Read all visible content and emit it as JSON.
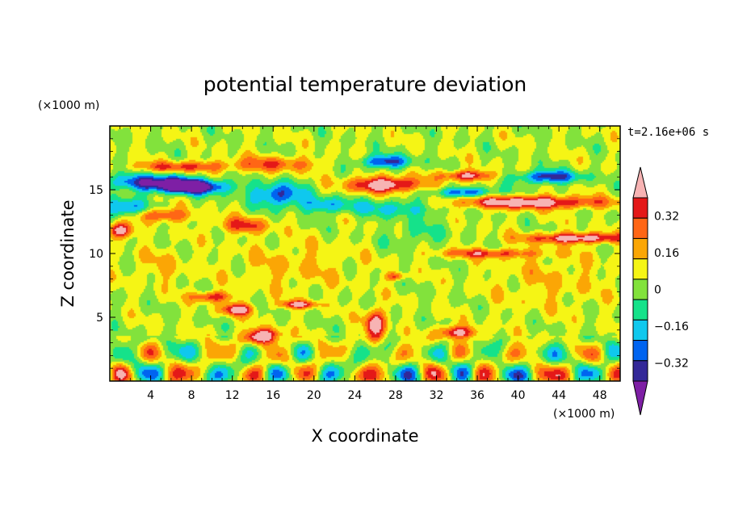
{
  "chart_data": {
    "type": "heatmap",
    "title": "potential temperature deviation",
    "xlabel": "X coordinate",
    "ylabel": "Z coordinate",
    "x_unit": "(×1000 m)",
    "y_unit": "(×1000 m)",
    "time_label": "t=2.16e+06 s",
    "xlim": [
      0,
      50
    ],
    "ylim": [
      0,
      20
    ],
    "x_ticks": [
      "4",
      "8",
      "12",
      "16",
      "20",
      "24",
      "28",
      "32",
      "36",
      "40",
      "44",
      "48"
    ],
    "x_tick_values": [
      4,
      8,
      12,
      16,
      20,
      24,
      28,
      32,
      36,
      40,
      44,
      48
    ],
    "y_ticks": [
      "5",
      "10",
      "15"
    ],
    "y_tick_values": [
      5,
      10,
      15
    ],
    "colorbar": {
      "levels": [
        -0.4,
        -0.32,
        -0.24,
        -0.16,
        -0.08,
        0,
        0.08,
        0.16,
        0.24,
        0.32,
        0.4
      ],
      "labels": [
        "0.32",
        "0.16",
        "0",
        "−0.16",
        "−0.32"
      ],
      "label_values": [
        0.32,
        0.16,
        0,
        -0.16,
        -0.32
      ],
      "colors": [
        "#7e1fa5",
        "#332898",
        "#0064f0",
        "#0fc8ee",
        "#15e28a",
        "#82e23c",
        "#f5f515",
        "#fba605",
        "#ff6615",
        "#e41818",
        "#f7b3b3"
      ],
      "extend": "both"
    },
    "field": {
      "background": 0,
      "features": [
        {
          "x": 4,
          "z": 15.6,
          "sx": 4.5,
          "sz": 0.6,
          "amp": -0.36
        },
        {
          "x": 8,
          "z": 15.2,
          "sx": 3.5,
          "sz": 0.55,
          "amp": -0.5
        },
        {
          "x": 1.5,
          "z": 13.5,
          "sx": 2.0,
          "sz": 0.8,
          "amp": -0.3
        },
        {
          "x": 1,
          "z": 11.8,
          "sx": 1.2,
          "sz": 0.6,
          "amp": 0.42
        },
        {
          "x": 5,
          "z": 13.0,
          "sx": 3.0,
          "sz": 0.5,
          "amp": 0.28
        },
        {
          "x": 7,
          "z": 16.8,
          "sx": 4.5,
          "sz": 0.4,
          "amp": 0.26
        },
        {
          "x": 16,
          "z": 17.0,
          "sx": 4.5,
          "sz": 0.6,
          "amp": 0.22
        },
        {
          "x": 16.5,
          "z": 14.6,
          "sx": 2.5,
          "sz": 0.9,
          "amp": -0.34
        },
        {
          "x": 13,
          "z": 12.2,
          "sx": 2.5,
          "sz": 0.6,
          "amp": 0.26
        },
        {
          "x": 21,
          "z": 13.8,
          "sx": 2.5,
          "sz": 0.6,
          "amp": -0.22
        },
        {
          "x": 27,
          "z": 15.4,
          "sx": 3.5,
          "sz": 0.6,
          "amp": 0.44
        },
        {
          "x": 27,
          "z": 17.2,
          "sx": 2.5,
          "sz": 0.5,
          "amp": -0.36
        },
        {
          "x": 35,
          "z": 16.1,
          "sx": 2.5,
          "sz": 0.4,
          "amp": 0.36
        },
        {
          "x": 35,
          "z": 14.8,
          "sx": 3.0,
          "sz": 0.4,
          "amp": -0.3
        },
        {
          "x": 28,
          "z": 13.6,
          "sx": 4.5,
          "sz": 0.7,
          "amp": -0.2
        },
        {
          "x": 41,
          "z": 14.0,
          "sx": 7.5,
          "sz": 0.5,
          "amp": 0.42
        },
        {
          "x": 43,
          "z": 16.0,
          "sx": 3.0,
          "sz": 0.5,
          "amp": -0.38
        },
        {
          "x": 46,
          "z": 11.2,
          "sx": 5.0,
          "sz": 0.4,
          "amp": 0.4
        },
        {
          "x": 37,
          "z": 10.0,
          "sx": 5.0,
          "sz": 0.35,
          "amp": 0.26
        },
        {
          "x": 43,
          "z": 8.0,
          "sx": 6.0,
          "sz": 2.5,
          "amp": 0.08
        },
        {
          "x": 18,
          "z": 9.0,
          "sx": 6.0,
          "sz": 2.0,
          "amp": 0.09
        },
        {
          "x": 5,
          "z": 9.0,
          "sx": 3.0,
          "sz": 1.5,
          "amp": 0.08
        },
        {
          "x": 30,
          "z": 11.5,
          "sx": 3.0,
          "sz": 1.0,
          "amp": -0.1
        },
        {
          "x": 10,
          "z": 6.6,
          "sx": 2.0,
          "sz": 0.4,
          "amp": 0.3
        },
        {
          "x": 12.5,
          "z": 5.6,
          "sx": 1.5,
          "sz": 0.45,
          "amp": 0.4
        },
        {
          "x": 18.5,
          "z": 6.0,
          "sx": 1.8,
          "sz": 0.3,
          "amp": 0.34
        },
        {
          "x": 15,
          "z": 3.5,
          "sx": 1.8,
          "sz": 0.6,
          "amp": 0.45
        },
        {
          "x": 26,
          "z": 4.4,
          "sx": 1.0,
          "sz": 1.2,
          "amp": 0.42
        },
        {
          "x": 34,
          "z": 3.8,
          "sx": 2.0,
          "sz": 0.5,
          "amp": 0.36
        },
        {
          "x": 28,
          "z": 8.2,
          "sx": 1.0,
          "sz": 0.3,
          "amp": 0.26
        }
      ],
      "lower_waves": {
        "z_top": 3.6,
        "amp": 0.34,
        "kx": 1.05,
        "kz": 1.8
      }
    }
  }
}
